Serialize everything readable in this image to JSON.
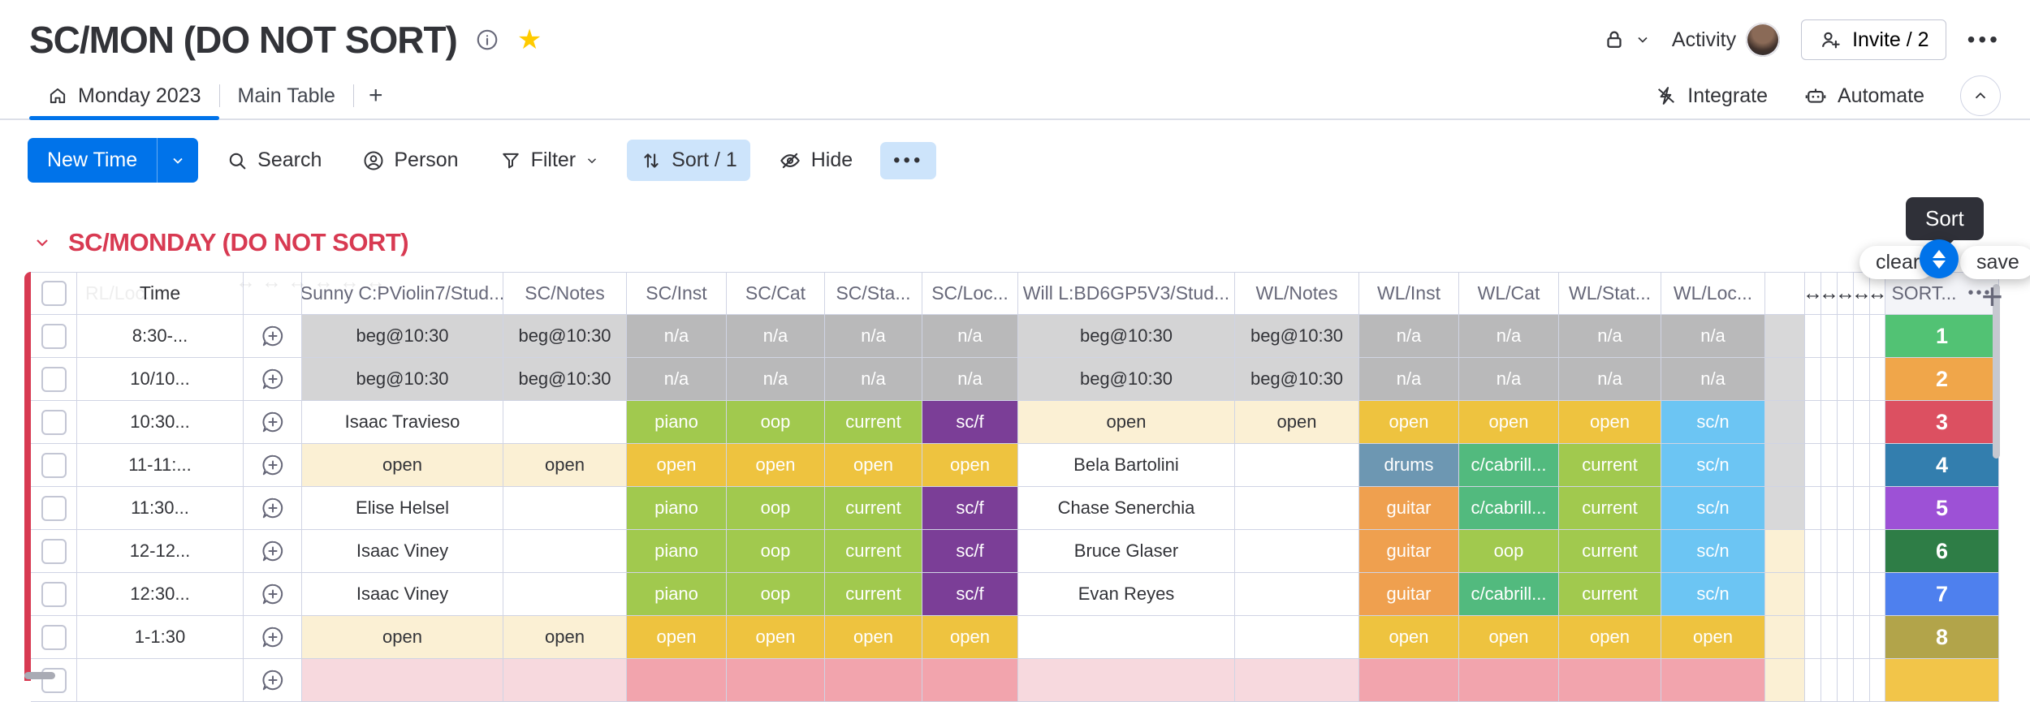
{
  "header": {
    "title": "SC/MON (DO NOT SORT)",
    "activity_label": "Activity",
    "invite_label": "Invite / 2"
  },
  "tabs": {
    "board_tab": "Monday 2023",
    "main_table_tab": "Main Table",
    "add_tab": "+",
    "integrate_label": "Integrate",
    "automate_label": "Automate"
  },
  "toolbar": {
    "new_item_label": "New Time",
    "search_label": "Search",
    "person_label": "Person",
    "filter_label": "Filter",
    "sort_label": "Sort / 1",
    "hide_label": "Hide"
  },
  "group": {
    "title": "SC/MONDAY (DO NOT SORT)",
    "color": "#d83a52"
  },
  "sort_controls": {
    "tooltip": "Sort",
    "clear_label": "clear",
    "save_label": "save"
  },
  "icons": {
    "info": "circle-i",
    "favorite": "star",
    "lock": "padlock",
    "invite": "person-plus",
    "menu": "three-dots",
    "home": "house",
    "integrate": "zap",
    "automate": "robot",
    "collapse": "chevron-up-circle",
    "search": "magnifier",
    "person": "person-circle",
    "filter": "funnel",
    "sort": "up-down-arrows",
    "hide": "eye-slash",
    "add_update": "speech-bubble-plus",
    "column_resize": "left-right-arrow"
  },
  "table": {
    "ghost_column_label": "RL/Loc...",
    "columns": [
      "Time",
      "Sunny C:PViolin7/Stud...",
      "SC/Notes",
      "SC/Inst",
      "SC/Cat",
      "SC/Sta...",
      "SC/Loc...",
      "Will L:BD6GP5V3/Stud...",
      "WL/Notes",
      "WL/Inst",
      "WL/Cat",
      "WL/Stat...",
      "WL/Loc...",
      "SORT..."
    ],
    "palette": {
      "white": "#ffffff",
      "lightgray": "#d4d4d5",
      "gray": "#b9b9ba",
      "lime": "#a1c94e",
      "purple": "#7b3e97",
      "yellow": "#eec33f",
      "cream": "#fbf0d4",
      "bluelt": "#6cc5f3",
      "steel": "#6d97b2",
      "greenmd": "#52ba7e",
      "orangemd": "#efa04f",
      "pinklt": "#f7d9de",
      "pink": "#f2a4ad",
      "tailgray": "#d8d8d9",
      "s1": "#52c274",
      "s2": "#f0a64a",
      "s3": "#dc5061",
      "s4": "#337eae",
      "s5": "#9d51d6",
      "s6": "#2e7d46",
      "s7": "#4e80ee",
      "s8": "#b2a44a",
      "s9": "#f2c549"
    },
    "rows": [
      {
        "time": "8:30-...",
        "cells": [
          [
            "beg@10:30",
            "lightgray",
            "dk"
          ],
          [
            "beg@10:30",
            "lightgray",
            "dk"
          ],
          [
            "n/a",
            "gray"
          ],
          [
            "n/a",
            "gray"
          ],
          [
            "n/a",
            "gray"
          ],
          [
            "n/a",
            "gray"
          ],
          [
            "beg@10:30",
            "lightgray",
            "dk"
          ],
          [
            "beg@10:30",
            "lightgray",
            "dk"
          ],
          [
            "n/a",
            "gray"
          ],
          [
            "n/a",
            "gray"
          ],
          [
            "n/a",
            "gray"
          ],
          [
            "n/a",
            "gray"
          ]
        ],
        "tail": "tailgray",
        "sort": [
          "1",
          "s1"
        ]
      },
      {
        "time": "10/10...",
        "cells": [
          [
            "beg@10:30",
            "lightgray",
            "dk"
          ],
          [
            "beg@10:30",
            "lightgray",
            "dk"
          ],
          [
            "n/a",
            "gray"
          ],
          [
            "n/a",
            "gray"
          ],
          [
            "n/a",
            "gray"
          ],
          [
            "n/a",
            "gray"
          ],
          [
            "beg@10:30",
            "lightgray",
            "dk"
          ],
          [
            "beg@10:30",
            "lightgray",
            "dk"
          ],
          [
            "n/a",
            "gray"
          ],
          [
            "n/a",
            "gray"
          ],
          [
            "n/a",
            "gray"
          ],
          [
            "n/a",
            "gray"
          ]
        ],
        "tail": "tailgray",
        "sort": [
          "2",
          "s2"
        ]
      },
      {
        "time": "10:30...",
        "cells": [
          [
            "Isaac Travieso",
            "white",
            "dk"
          ],
          [
            "",
            "white",
            "dk"
          ],
          [
            "piano",
            "lime"
          ],
          [
            "oop",
            "lime"
          ],
          [
            "current",
            "lime"
          ],
          [
            "sc/f",
            "purple"
          ],
          [
            "open",
            "cream",
            "dk"
          ],
          [
            "open",
            "cream",
            "dk"
          ],
          [
            "open",
            "yellow"
          ],
          [
            "open",
            "yellow"
          ],
          [
            "open",
            "yellow"
          ],
          [
            "sc/n",
            "bluelt"
          ]
        ],
        "tail": "tailgray",
        "sort": [
          "3",
          "s3"
        ]
      },
      {
        "time": "11-11:...",
        "cells": [
          [
            "open",
            "cream",
            "dk"
          ],
          [
            "open",
            "cream",
            "dk"
          ],
          [
            "open",
            "yellow"
          ],
          [
            "open",
            "yellow"
          ],
          [
            "open",
            "yellow"
          ],
          [
            "open",
            "yellow"
          ],
          [
            "Bela Bartolini",
            "white",
            "dk"
          ],
          [
            "",
            "white",
            "dk"
          ],
          [
            "drums",
            "steel"
          ],
          [
            "c/cabrill...",
            "greenmd"
          ],
          [
            "current",
            "lime"
          ],
          [
            "sc/n",
            "bluelt"
          ]
        ],
        "tail": "tailgray",
        "sort": [
          "4",
          "s4"
        ]
      },
      {
        "time": "11:30...",
        "cells": [
          [
            "Elise Helsel",
            "white",
            "dk"
          ],
          [
            "",
            "white",
            "dk"
          ],
          [
            "piano",
            "lime"
          ],
          [
            "oop",
            "lime"
          ],
          [
            "current",
            "lime"
          ],
          [
            "sc/f",
            "purple"
          ],
          [
            "Chase Senerchia",
            "white",
            "dk"
          ],
          [
            "",
            "white",
            "dk"
          ],
          [
            "guitar",
            "orangemd"
          ],
          [
            "c/cabrill...",
            "greenmd"
          ],
          [
            "current",
            "lime"
          ],
          [
            "sc/n",
            "bluelt"
          ]
        ],
        "tail": "tailgray",
        "sort": [
          "5",
          "s5"
        ]
      },
      {
        "time": "12-12...",
        "cells": [
          [
            "Isaac Viney",
            "white",
            "dk"
          ],
          [
            "",
            "white",
            "dk"
          ],
          [
            "piano",
            "lime"
          ],
          [
            "oop",
            "lime"
          ],
          [
            "current",
            "lime"
          ],
          [
            "sc/f",
            "purple"
          ],
          [
            "Bruce Glaser",
            "white",
            "dk"
          ],
          [
            "",
            "white",
            "dk"
          ],
          [
            "guitar",
            "orangemd"
          ],
          [
            "oop",
            "lime"
          ],
          [
            "current",
            "lime"
          ],
          [
            "sc/n",
            "bluelt"
          ]
        ],
        "tail": "cream",
        "sort": [
          "6",
          "s6"
        ]
      },
      {
        "time": "12:30...",
        "cells": [
          [
            "Isaac Viney",
            "white",
            "dk"
          ],
          [
            "",
            "white",
            "dk"
          ],
          [
            "piano",
            "lime"
          ],
          [
            "oop",
            "lime"
          ],
          [
            "current",
            "lime"
          ],
          [
            "sc/f",
            "purple"
          ],
          [
            "Evan Reyes",
            "white",
            "dk"
          ],
          [
            "",
            "white",
            "dk"
          ],
          [
            "guitar",
            "orangemd"
          ],
          [
            "c/cabrill...",
            "greenmd"
          ],
          [
            "current",
            "lime"
          ],
          [
            "sc/n",
            "bluelt"
          ]
        ],
        "tail": "cream",
        "sort": [
          "7",
          "s7"
        ]
      },
      {
        "time": "1-1:30",
        "cells": [
          [
            "open",
            "cream",
            "dk"
          ],
          [
            "open",
            "cream",
            "dk"
          ],
          [
            "open",
            "yellow"
          ],
          [
            "open",
            "yellow"
          ],
          [
            "open",
            "yellow"
          ],
          [
            "open",
            "yellow"
          ],
          [
            "",
            "white",
            "dk"
          ],
          [
            "",
            "white",
            "dk"
          ],
          [
            "open",
            "yellow"
          ],
          [
            "open",
            "yellow"
          ],
          [
            "open",
            "yellow"
          ],
          [
            "open",
            "yellow"
          ]
        ],
        "tail": "cream",
        "sort": [
          "8",
          "s8"
        ]
      },
      {
        "time": "",
        "cells": [
          [
            "",
            "pinklt",
            "dk"
          ],
          [
            "",
            "pinklt",
            "dk"
          ],
          [
            "",
            "pink"
          ],
          [
            "",
            "pink"
          ],
          [
            "",
            "pink"
          ],
          [
            "",
            "pink"
          ],
          [
            "",
            "pinklt",
            "dk"
          ],
          [
            "",
            "pinklt",
            "dk"
          ],
          [
            "",
            "pink"
          ],
          [
            "",
            "pink"
          ],
          [
            "",
            "pink"
          ],
          [
            "",
            "pink"
          ]
        ],
        "tail": "cream",
        "sort": [
          "",
          "s9"
        ]
      }
    ]
  }
}
